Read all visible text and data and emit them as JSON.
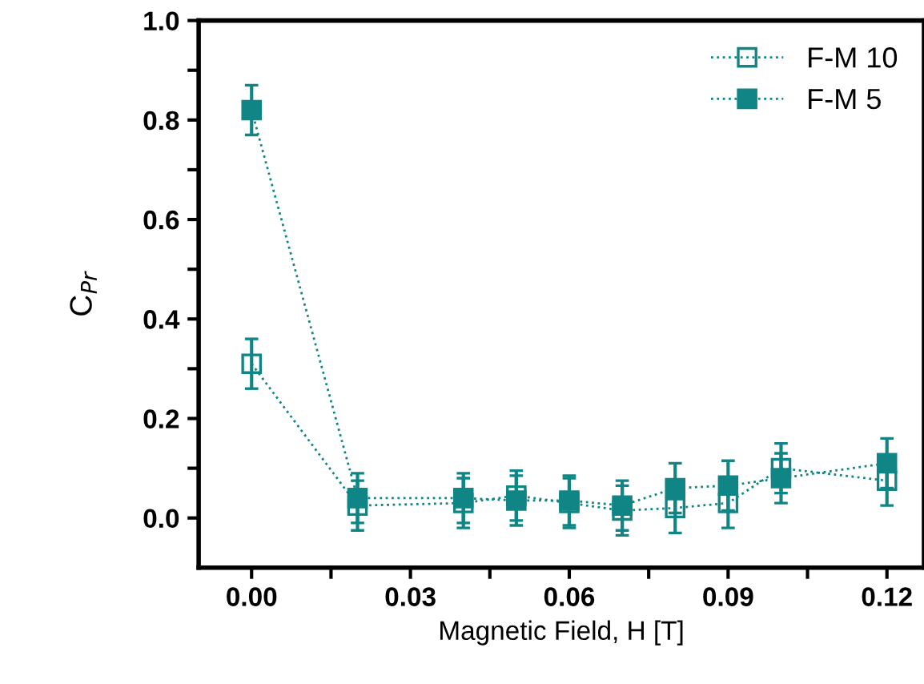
{
  "chart_data": {
    "type": "line",
    "xlabel": "Magnetic Field, H [T]",
    "ylabel": "C$_{Pr}$",
    "x": [
      0.0,
      0.02,
      0.04,
      0.05,
      0.06,
      0.07,
      0.08,
      0.09,
      0.1,
      0.12
    ],
    "series": [
      {
        "name": "F-M 10",
        "color": "#108585",
        "values": [
          0.31,
          0.025,
          0.03,
          0.045,
          0.03,
          0.015,
          0.02,
          0.03,
          0.1,
          0.075
        ],
        "errors": [
          0.05,
          0.05,
          0.05,
          0.05,
          0.05,
          0.05,
          0.05,
          0.05,
          0.05,
          0.05
        ]
      },
      {
        "name": "F-M 5",
        "color": "#108585",
        "values": [
          0.82,
          0.04,
          0.04,
          0.035,
          0.035,
          0.025,
          0.06,
          0.065,
          0.08,
          0.11
        ],
        "errors": [
          0.05,
          0.05,
          0.05,
          0.05,
          0.05,
          0.05,
          0.05,
          0.05,
          0.05,
          0.05
        ]
      }
    ],
    "xlim": [
      -0.01,
      0.127
    ],
    "ylim": [
      -0.1,
      1.0
    ],
    "xticks": [
      {
        "value": 0.0,
        "label": "0.00"
      },
      {
        "value": 0.015,
        "label": null
      },
      {
        "value": 0.03,
        "label": "0.03"
      },
      {
        "value": 0.045,
        "label": null
      },
      {
        "value": 0.06,
        "label": "0.06"
      },
      {
        "value": 0.075,
        "label": null
      },
      {
        "value": 0.09,
        "label": "0.09"
      },
      {
        "value": 0.105,
        "label": null
      },
      {
        "value": 0.12,
        "label": "0.12"
      }
    ],
    "yticks": [
      {
        "value": 0.0,
        "label": "0.0"
      },
      {
        "value": 0.1,
        "label": null
      },
      {
        "value": 0.2,
        "label": "0.2"
      },
      {
        "value": 0.3,
        "label": null
      },
      {
        "value": 0.4,
        "label": "0.4"
      },
      {
        "value": 0.5,
        "label": null
      },
      {
        "value": 0.6,
        "label": "0.6"
      },
      {
        "value": 0.7,
        "label": null
      },
      {
        "value": 0.8,
        "label": "0.8"
      },
      {
        "value": 0.9,
        "label": null
      },
      {
        "value": 1.0,
        "label": "1.0"
      }
    ],
    "marker": "square",
    "line_style": "dotted",
    "legend": "top right",
    "grid": false
  }
}
